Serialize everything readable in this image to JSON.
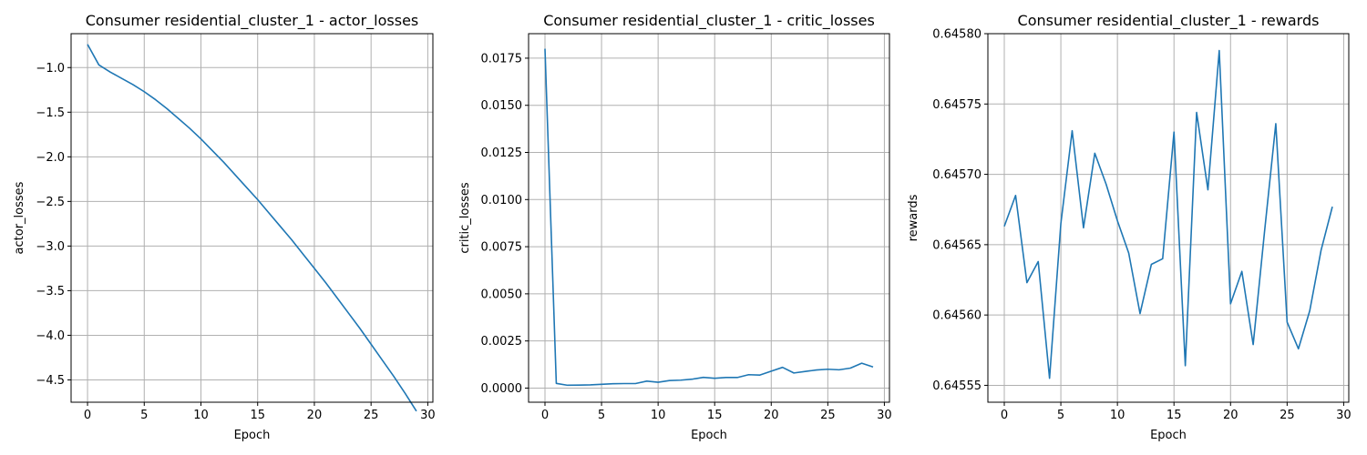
{
  "chart_data": [
    {
      "type": "line",
      "title": "Consumer residential_cluster_1 - actor_losses",
      "xlabel": "Epoch",
      "ylabel": "actor_losses",
      "xlim": [
        -1.45,
        30.45
      ],
      "ylim": [
        -4.75,
        -0.62
      ],
      "xticks": [
        0,
        5,
        10,
        15,
        20,
        25,
        30
      ],
      "xtick_labels": [
        "0",
        "5",
        "10",
        "15",
        "20",
        "25",
        "30"
      ],
      "yticks": [
        -1.0,
        -1.5,
        -2.0,
        -2.5,
        -3.0,
        -3.5,
        -4.0,
        -4.5
      ],
      "ytick_labels": [
        "−1.0",
        "−1.5",
        "−2.0",
        "−2.5",
        "−3.0",
        "−3.5",
        "−4.0",
        "−4.5"
      ],
      "grid": true,
      "color": "#1f77b4",
      "series": [
        {
          "x": [
            0,
            1,
            2,
            3,
            4,
            5,
            6,
            7,
            8,
            9,
            10,
            11,
            12,
            13,
            14,
            15,
            16,
            17,
            18,
            19,
            20,
            21,
            22,
            23,
            24,
            25,
            26,
            27,
            28,
            29
          ],
          "values": [
            -0.74,
            -0.97,
            -1.05,
            -1.12,
            -1.19,
            -1.27,
            -1.36,
            -1.46,
            -1.57,
            -1.68,
            -1.8,
            -1.93,
            -2.06,
            -2.2,
            -2.34,
            -2.48,
            -2.63,
            -2.78,
            -2.93,
            -3.09,
            -3.25,
            -3.41,
            -3.58,
            -3.75,
            -3.92,
            -4.1,
            -4.28,
            -4.46,
            -4.65,
            -4.85
          ]
        }
      ]
    },
    {
      "type": "line",
      "title": "Consumer residential_cluster_1 - critic_losses",
      "xlabel": "Epoch",
      "ylabel": "critic_losses",
      "xlim": [
        -1.45,
        30.45
      ],
      "ylim": [
        -0.00075,
        0.0188
      ],
      "xticks": [
        0,
        5,
        10,
        15,
        20,
        25,
        30
      ],
      "xtick_labels": [
        "0",
        "5",
        "10",
        "15",
        "20",
        "25",
        "30"
      ],
      "yticks": [
        0.0,
        0.0025,
        0.005,
        0.0075,
        0.01,
        0.0125,
        0.015,
        0.0175
      ],
      "ytick_labels": [
        "0.0000",
        "0.0025",
        "0.0050",
        "0.0075",
        "0.0100",
        "0.0125",
        "0.0150",
        "0.0175"
      ],
      "grid": true,
      "color": "#1f77b4",
      "series": [
        {
          "x": [
            0,
            1,
            2,
            3,
            4,
            5,
            6,
            7,
            8,
            9,
            10,
            11,
            12,
            13,
            14,
            15,
            16,
            17,
            18,
            19,
            20,
            21,
            22,
            23,
            24,
            25,
            26,
            27,
            28,
            29
          ],
          "values": [
            0.018,
            0.00025,
            0.00015,
            0.00016,
            0.00017,
            0.0002,
            0.00023,
            0.00024,
            0.00024,
            0.00037,
            0.00031,
            0.0004,
            0.00042,
            0.00047,
            0.00057,
            0.00052,
            0.00056,
            0.00056,
            0.00071,
            0.00069,
            0.0009,
            0.0011,
            0.0008,
            0.00088,
            0.00096,
            0.001,
            0.00097,
            0.00106,
            0.00132,
            0.00112
          ]
        }
      ]
    },
    {
      "type": "line",
      "title": "Consumer residential_cluster_1 - rewards",
      "xlabel": "Epoch",
      "ylabel": "rewards",
      "xlim": [
        -1.45,
        30.45
      ],
      "ylim": [
        0.645538,
        0.6458
      ],
      "xticks": [
        0,
        5,
        10,
        15,
        20,
        25,
        30
      ],
      "xtick_labels": [
        "0",
        "5",
        "10",
        "15",
        "20",
        "25",
        "30"
      ],
      "yticks": [
        0.64555,
        0.6456,
        0.64565,
        0.6457,
        0.64575,
        0.6458
      ],
      "ytick_labels": [
        "0.64555",
        "0.64560",
        "0.64565",
        "0.64570",
        "0.64575",
        "0.64580"
      ],
      "grid": true,
      "color": "#1f77b4",
      "series": [
        {
          "x": [
            0,
            1,
            2,
            3,
            4,
            5,
            6,
            7,
            8,
            9,
            10,
            11,
            12,
            13,
            14,
            15,
            16,
            17,
            18,
            19,
            20,
            21,
            22,
            23,
            24,
            25,
            26,
            27,
            28,
            29
          ],
          "values": [
            0.645663,
            0.645685,
            0.645623,
            0.645638,
            0.645555,
            0.645665,
            0.645731,
            0.645662,
            0.645715,
            0.645693,
            0.645667,
            0.645644,
            0.645601,
            0.645636,
            0.64564,
            0.64573,
            0.645564,
            0.645744,
            0.645689,
            0.645788,
            0.645608,
            0.645631,
            0.645579,
            0.645659,
            0.645736,
            0.645595,
            0.645576,
            0.645603,
            0.645646,
            0.645677
          ]
        }
      ]
    }
  ]
}
